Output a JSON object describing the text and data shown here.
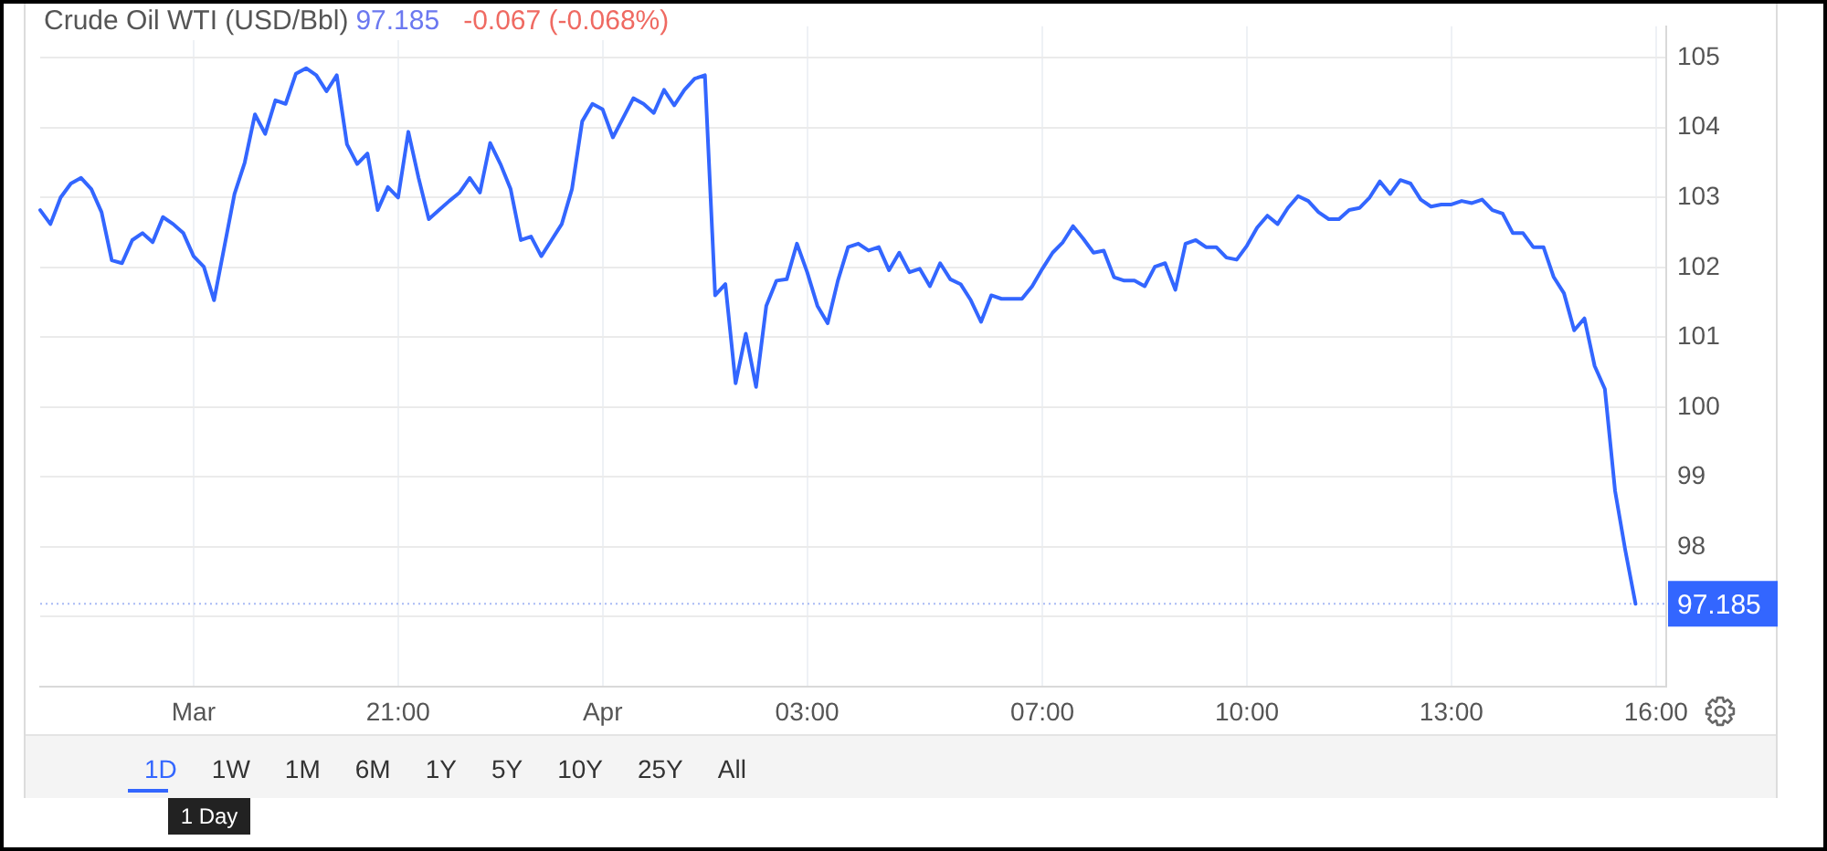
{
  "chart_data": {
    "type": "line",
    "title": "Crude Oil WTI (USD/Bbl)",
    "annotations": [
      "97.185",
      "-0.067 (-0.068%)",
      "1D",
      "1W",
      "1M",
      "6M",
      "1Y",
      "5Y",
      "10Y",
      "25Y",
      "All",
      "1 Day"
    ],
    "categories": [
      null,
      null,
      null,
      null,
      null,
      null,
      null,
      null,
      null,
      null,
      null,
      null,
      null,
      null,
      null,
      "Mar",
      null,
      null,
      null,
      null,
      null,
      null,
      null,
      null,
      null,
      null,
      null,
      null,
      null,
      null,
      null,
      null,
      null,
      null,
      null,
      "21:00",
      null,
      null,
      null,
      null,
      null,
      null,
      null,
      null,
      null,
      null,
      null,
      null,
      null,
      null,
      null,
      null,
      null,
      null,
      null,
      "Apr",
      null,
      null,
      null,
      null,
      null,
      null,
      null,
      null,
      null,
      null,
      null,
      null,
      null,
      null,
      null,
      null,
      null,
      null,
      null,
      "03:00",
      null,
      null,
      null,
      null,
      null,
      null,
      null,
      null,
      null,
      null,
      null,
      null,
      null,
      null,
      null,
      null,
      null,
      null,
      null,
      null,
      null,
      null,
      "07:00",
      null,
      null,
      null,
      null,
      null,
      null,
      null,
      null,
      null,
      null,
      null,
      null,
      null,
      null,
      null,
      null,
      null,
      null,
      null,
      "10:00",
      null,
      null,
      null,
      null,
      null,
      null,
      null,
      null,
      null,
      null,
      null,
      null,
      null,
      null,
      null,
      null,
      null,
      null,
      null,
      "13:00",
      null,
      null,
      null,
      null,
      null,
      null,
      null,
      null,
      null,
      null,
      null,
      null,
      null,
      null,
      null,
      null,
      null,
      null,
      null,
      "16:00",
      null
    ],
    "series": [
      {
        "color": "#3366ff",
        "values": [
          102.82,
          102.62,
          103.0,
          103.2,
          103.28,
          103.12,
          102.79,
          102.1,
          102.06,
          102.39,
          102.49,
          102.36,
          102.72,
          102.62,
          102.49,
          102.16,
          102.01,
          101.53,
          102.29,
          103.05,
          103.5,
          104.19,
          103.91,
          104.39,
          104.34,
          104.77,
          104.85,
          104.75,
          104.52,
          104.75,
          103.76,
          103.48,
          103.63,
          102.82,
          103.15,
          103.0,
          103.94,
          103.28,
          102.69,
          102.82,
          102.95,
          103.07,
          103.28,
          103.07,
          103.78,
          103.48,
          103.12,
          102.39,
          102.44,
          102.16,
          102.39,
          102.62,
          103.12,
          104.09,
          104.34,
          104.26,
          103.86,
          104.14,
          104.42,
          104.34,
          104.21,
          104.54,
          104.32,
          104.54,
          104.7,
          104.75,
          101.6,
          101.76,
          100.34,
          101.05,
          100.29,
          101.45,
          101.81,
          101.83,
          102.34,
          101.93,
          101.45,
          101.2,
          101.81,
          102.29,
          102.34,
          102.24,
          102.29,
          101.96,
          102.21,
          101.93,
          101.98,
          101.73,
          102.06,
          101.83,
          101.76,
          101.53,
          101.22,
          101.6,
          101.55,
          101.55,
          101.55,
          101.73,
          101.98,
          102.21,
          102.36,
          102.59,
          102.41,
          102.21,
          102.24,
          101.86,
          101.81,
          101.81,
          101.73,
          102.01,
          102.06,
          101.68,
          102.34,
          102.39,
          102.29,
          102.29,
          102.14,
          102.11,
          102.31,
          102.57,
          102.74,
          102.62,
          102.85,
          103.02,
          102.95,
          102.79,
          102.69,
          102.69,
          102.82,
          102.85,
          103.0,
          103.23,
          103.05,
          103.25,
          103.2,
          102.97,
          102.87,
          102.9,
          102.9,
          102.95,
          102.92,
          102.97,
          102.82,
          102.77,
          102.49,
          102.49,
          102.29,
          102.29,
          101.86,
          101.63,
          101.1,
          101.27,
          100.59,
          100.26,
          98.8,
          97.95,
          97.185,
          null,
          null,
          null
        ]
      }
    ],
    "ylim": [
      96,
      105.45
    ],
    "yticks": [
      {
        "value": 97,
        "label": null
      },
      98,
      99,
      100,
      101,
      102,
      103,
      104,
      105
    ],
    "grid": true,
    "ref_lines": [
      {
        "axis": "y",
        "value": 97.185,
        "label": "97.185",
        "color": "#a9bbf5",
        "line_style": "dotted"
      }
    ]
  }
}
